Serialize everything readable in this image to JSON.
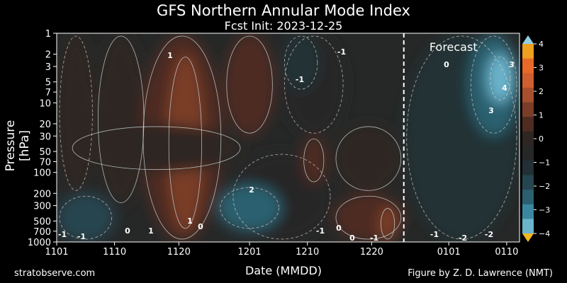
{
  "chart_data": {
    "type": "heatmap",
    "title": "GFS Northern Annular Mode Index",
    "subtitle": "Fcst Init: 2023-12-25",
    "xlabel": "Date (MMDD)",
    "ylabel": "Pressure [hPa]",
    "x_ticks": [
      "1101",
      "1110",
      "1120",
      "1201",
      "1210",
      "1220",
      "0101",
      "0110"
    ],
    "y_ticks": [
      "1",
      "2",
      "3",
      "5",
      "7",
      "10",
      "20",
      "30",
      "50",
      "70",
      "100",
      "200",
      "300",
      "500",
      "700",
      "1000"
    ],
    "y_scale": "log",
    "ylim": [
      1000,
      1
    ],
    "xlim": [
      "2023-11-01",
      "2024-01-12"
    ],
    "forecast_start": "2023-12-25",
    "forecast_label": "Forecast",
    "colorbar": {
      "ticks": [
        "4",
        "3",
        "2",
        "1",
        "0",
        "−1",
        "−2",
        "−3",
        "−4"
      ],
      "range": [
        -4,
        4
      ],
      "extend": "both",
      "colors": [
        "#f0a020",
        "#e86a28",
        "#d05f30",
        "#a8502e",
        "#7a3e28",
        "#4e2c22",
        "#2e2622",
        "#262828",
        "#223035",
        "#254550",
        "#2a6070",
        "#3a88a0",
        "#6ab4cc"
      ]
    },
    "contour_labels": [
      "1",
      "-1",
      "-1",
      "0",
      "3",
      "4",
      "3",
      "-1",
      "-1",
      "0",
      "1",
      "1",
      "0",
      "2",
      "-1",
      "0",
      "0",
      "-1",
      "-1",
      "-2",
      "-2"
    ],
    "regions": [
      {
        "x0": "2023-11-01",
        "x1": "2023-11-07",
        "p_top": 1,
        "p_bottom": 200,
        "value": -0.2
      },
      {
        "x0": "2023-11-07",
        "x1": "2023-11-15",
        "p_top": 1,
        "p_bottom": 300,
        "value": 0.3
      },
      {
        "x0": "2023-11-14",
        "x1": "2023-11-27",
        "p_top": 1,
        "p_bottom": 1000,
        "value": 0.9
      },
      {
        "x0": "2023-11-18",
        "x1": "2023-11-24",
        "p_top": 2,
        "p_bottom": 700,
        "value": 1.3
      },
      {
        "x0": "2023-11-27",
        "x1": "2023-12-05",
        "p_top": 1,
        "p_bottom": 30,
        "value": 0.6
      },
      {
        "x0": "2023-11-03",
        "x1": "2023-11-30",
        "p_top": 20,
        "p_bottom": 100,
        "value": 0.2
      },
      {
        "x0": "2023-11-28",
        "x1": "2023-12-14",
        "p_top": 50,
        "p_bottom": 1000,
        "value": -0.6
      },
      {
        "x0": "2023-12-06",
        "x1": "2023-12-16",
        "p_top": 1,
        "p_bottom": 30,
        "value": -0.9
      },
      {
        "x0": "2023-12-06",
        "x1": "2023-12-12",
        "p_top": 1,
        "p_bottom": 7,
        "value": -1.4
      },
      {
        "x0": "2023-12-09",
        "x1": "2023-12-13",
        "p_top": 30,
        "p_bottom": 150,
        "value": 0.5
      },
      {
        "x0": "2023-12-14",
        "x1": "2023-12-25",
        "p_top": 20,
        "p_bottom": 200,
        "value": 0.0
      },
      {
        "x0": "2023-12-14",
        "x1": "2023-12-25",
        "p_top": 200,
        "p_bottom": 1000,
        "value": 0.4
      },
      {
        "x0": "2023-12-21",
        "x1": "2023-12-24",
        "p_top": 300,
        "p_bottom": 1000,
        "value": 1.2
      },
      {
        "x0": "2023-12-25",
        "x1": "2024-01-12",
        "p_top": 1,
        "p_bottom": 1000,
        "value": -1.2
      },
      {
        "x0": "2024-01-04",
        "x1": "2024-01-12",
        "p_top": 1,
        "p_bottom": 30,
        "value": -2.5
      },
      {
        "x0": "2024-01-07",
        "x1": "2024-01-11",
        "p_top": 2,
        "p_bottom": 10,
        "value": -3.8
      },
      {
        "x0": "2023-11-01",
        "x1": "2023-11-10",
        "p_top": 200,
        "p_bottom": 1000,
        "value": -1.8
      },
      {
        "x0": "2023-11-26",
        "x1": "2023-12-06",
        "p_top": 150,
        "p_bottom": 700,
        "value": -2.6
      }
    ]
  },
  "footer": {
    "left": "stratobserve.com",
    "right": "Figure by Z. D. Lawrence (NMT)"
  }
}
